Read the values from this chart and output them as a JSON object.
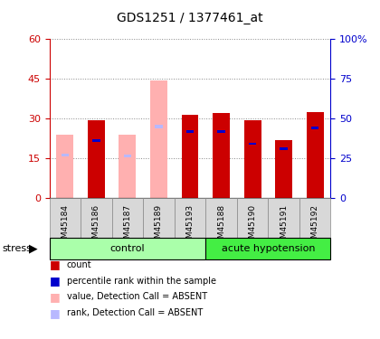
{
  "title": "GDS1251 / 1377461_at",
  "samples": [
    "GSM45184",
    "GSM45186",
    "GSM45187",
    "GSM45189",
    "GSM45193",
    "GSM45188",
    "GSM45190",
    "GSM45191",
    "GSM45192"
  ],
  "absent": [
    true,
    false,
    true,
    true,
    false,
    false,
    false,
    false,
    false
  ],
  "value_present": [
    0,
    29.5,
    0,
    0,
    31.5,
    32.0,
    29.5,
    22.0,
    32.5
  ],
  "value_absent": [
    24.0,
    0,
    24.0,
    44.5,
    0,
    0,
    0,
    0,
    0
  ],
  "rank_present_pct": [
    0,
    37.0,
    0,
    0,
    42.5,
    42.5,
    35.0,
    32.0,
    45.0
  ],
  "rank_absent_pct": [
    28.0,
    0,
    27.5,
    46.0,
    0,
    0,
    0,
    0,
    0
  ],
  "rank_delta_present_pct": [
    0,
    1.5,
    0,
    0,
    1.5,
    1.5,
    1.5,
    1.5,
    1.5
  ],
  "rank_delta_absent_pct": [
    1.5,
    0,
    1.5,
    2.0,
    0,
    0,
    0,
    0,
    0
  ],
  "ylim_left": [
    0,
    60
  ],
  "ylim_right": [
    0,
    100
  ],
  "yticks_left": [
    0,
    15,
    30,
    45,
    60
  ],
  "yticks_right": [
    0,
    25,
    50,
    75,
    100
  ],
  "color_count": "#cc0000",
  "color_rank": "#0000cc",
  "color_value_absent": "#ffb0b0",
  "color_rank_absent": "#b8b8ff",
  "color_control_light": "#ccffcc",
  "color_control_dark": "#00dd00",
  "color_acute_light": "#ccffcc",
  "color_acute_dark": "#00dd00",
  "bar_width": 0.55,
  "rank_bar_width": 0.25,
  "legend_entries": [
    "count",
    "percentile rank within the sample",
    "value, Detection Call = ABSENT",
    "rank, Detection Call = ABSENT"
  ]
}
